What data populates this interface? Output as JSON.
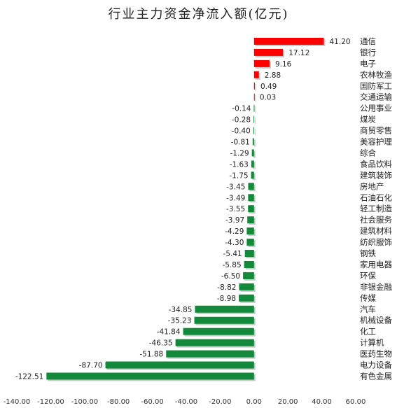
{
  "chart_data": {
    "type": "bar",
    "orientation": "horizontal",
    "title": "行业主力资金净流入额(亿元)",
    "categories": [
      "通信",
      "银行",
      "电子",
      "农林牧渔",
      "国防军工",
      "交通运输",
      "公用事业",
      "煤炭",
      "商贸零售",
      "美容护理",
      "综合",
      "食品饮料",
      "建筑装饰",
      "房地产",
      "石油石化",
      "轻工制造",
      "社会服务",
      "建筑材料",
      "纺织服饰",
      "钢铁",
      "家用电器",
      "环保",
      "非银金融",
      "传媒",
      "汽车",
      "机械设备",
      "化工",
      "计算机",
      "医药生物",
      "电力设备",
      "有色金属"
    ],
    "values": [
      41.2,
      17.12,
      9.16,
      2.88,
      0.49,
      0.03,
      -0.14,
      -0.28,
      -0.4,
      -0.81,
      -1.29,
      -1.63,
      -1.75,
      -3.45,
      -3.49,
      -3.55,
      -3.97,
      -4.29,
      -4.3,
      -5.41,
      -5.85,
      -6.5,
      -8.82,
      -8.98,
      -34.85,
      -35.23,
      -41.84,
      -46.35,
      -51.88,
      -87.7,
      -122.51
    ],
    "value_labels": [
      "41.20",
      "17.12",
      "9.16",
      "2.88",
      "0.49",
      "0.03",
      "-0.14",
      "-0.28",
      "-0.40",
      "-0.81",
      "-1.29",
      "-1.63",
      "-1.75",
      "-3.45",
      "-3.49",
      "-3.55",
      "-3.97",
      "-4.29",
      "-4.30",
      "-5.41",
      "-5.85",
      "-6.50",
      "-8.82",
      "-8.98",
      "-34.85",
      "-35.23",
      "-41.84",
      "-46.35",
      "-51.88",
      "-87.70",
      "-122.51"
    ],
    "xlim": [
      -140,
      60
    ],
    "xticks": [
      -140,
      -120,
      -100,
      -80,
      -60,
      -40,
      -20,
      0,
      20,
      40,
      60
    ],
    "xtick_labels": [
      "-140.00",
      "-120.00",
      "-100.00",
      "-80.00",
      "-60.00",
      "-40.00",
      "-20.00",
      "0.00",
      "20.00",
      "40.00",
      "60.00"
    ],
    "xlabel": "",
    "ylabel": "",
    "grid": false,
    "legend": "none",
    "colors": {
      "positive": "#ff0000",
      "negative": "#128a3a",
      "shadow": "#b5b5b5"
    }
  }
}
